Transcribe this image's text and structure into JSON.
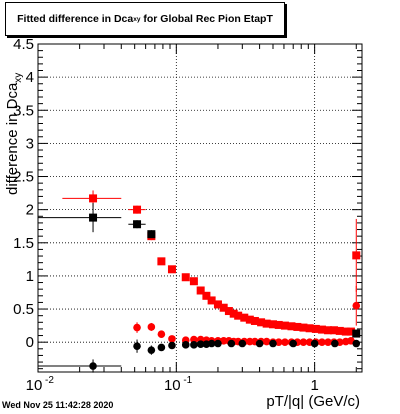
{
  "chart_data": {
    "type": "scatter",
    "title": "Fitted difference in Dca",
    "title_sub": "xy",
    "title_tail": "for Global Rec Pion EtapT",
    "xlabel": "pT/|q| (GeV/c)",
    "ylabel": "difference in Dca",
    "ylabel_sub": "xy",
    "x_scale": "log",
    "xlim": [
      0.01,
      2.2
    ],
    "ylim": [
      -0.45,
      4.5
    ],
    "grid": true,
    "x_ticks": [
      {
        "value": 0.01,
        "label": "10",
        "exp": "-2"
      },
      {
        "value": 0.1,
        "label": "10",
        "exp": "-1"
      },
      {
        "value": 1,
        "label": "1",
        "exp": ""
      }
    ],
    "y_ticks": [
      0,
      0.5,
      1,
      1.5,
      2,
      2.5,
      3,
      3.5,
      4,
      4.5
    ],
    "y_tick_labels": [
      "0",
      "0.5",
      "1",
      "1.5",
      "2",
      "2.5",
      "3",
      "3.5",
      "4",
      "4.5"
    ],
    "series": [
      {
        "marker": "square",
        "color": "#ff0000",
        "points": [
          {
            "x": 0.025,
            "y": 2.17,
            "xerr": [
              0.015,
              0.04
            ],
            "yerr": 0.12
          },
          {
            "x": 0.052,
            "y": 2.0,
            "xerr": [
              0.045,
              0.06
            ],
            "yerr": 0.06
          },
          {
            "x": 0.066,
            "y": 1.6,
            "xerr": [
              0.062,
              0.07
            ],
            "yerr": 0.06
          },
          {
            "x": 0.078,
            "y": 1.22
          },
          {
            "x": 0.093,
            "y": 1.1
          },
          {
            "x": 0.117,
            "y": 0.98
          },
          {
            "x": 0.134,
            "y": 0.92
          },
          {
            "x": 0.15,
            "y": 0.78
          },
          {
            "x": 0.165,
            "y": 0.7
          },
          {
            "x": 0.18,
            "y": 0.63
          },
          {
            "x": 0.2,
            "y": 0.57
          },
          {
            "x": 0.22,
            "y": 0.52
          },
          {
            "x": 0.24,
            "y": 0.47
          },
          {
            "x": 0.26,
            "y": 0.43
          },
          {
            "x": 0.28,
            "y": 0.4
          },
          {
            "x": 0.31,
            "y": 0.37
          },
          {
            "x": 0.34,
            "y": 0.34
          },
          {
            "x": 0.37,
            "y": 0.32
          },
          {
            "x": 0.41,
            "y": 0.3
          },
          {
            "x": 0.45,
            "y": 0.28
          },
          {
            "x": 0.5,
            "y": 0.27
          },
          {
            "x": 0.55,
            "y": 0.26
          },
          {
            "x": 0.61,
            "y": 0.25
          },
          {
            "x": 0.68,
            "y": 0.24
          },
          {
            "x": 0.75,
            "y": 0.23
          },
          {
            "x": 0.83,
            "y": 0.22
          },
          {
            "x": 0.92,
            "y": 0.21
          },
          {
            "x": 1.02,
            "y": 0.2
          },
          {
            "x": 1.13,
            "y": 0.19
          },
          {
            "x": 1.25,
            "y": 0.18
          },
          {
            "x": 1.38,
            "y": 0.18
          },
          {
            "x": 1.52,
            "y": 0.17
          },
          {
            "x": 1.68,
            "y": 0.16
          },
          {
            "x": 1.83,
            "y": 0.16
          },
          {
            "x": 2.0,
            "y": 1.31,
            "yerr": 0.55
          }
        ]
      },
      {
        "marker": "square",
        "color": "#000000",
        "points": [
          {
            "x": 0.025,
            "y": 1.88,
            "xerr": [
              0.01,
              0.04
            ],
            "yerr": 0.22
          },
          {
            "x": 0.052,
            "y": 1.78,
            "xerr": [
              0.045,
              0.06
            ],
            "yerr": 0.06
          },
          {
            "x": 0.066,
            "y": 1.63,
            "yerr": 0.06
          },
          {
            "x": 2.0,
            "y": 0.13,
            "yerr": 0.05
          }
        ]
      },
      {
        "marker": "circle",
        "color": "#ff0000",
        "points": [
          {
            "x": 0.052,
            "y": 0.22,
            "yerr": 0.08
          },
          {
            "x": 0.066,
            "y": 0.23,
            "yerr": 0.06
          },
          {
            "x": 0.078,
            "y": 0.12
          },
          {
            "x": 0.093,
            "y": 0.05
          },
          {
            "x": 0.117,
            "y": 0.03
          },
          {
            "x": 0.134,
            "y": 0.04
          },
          {
            "x": 0.15,
            "y": 0.04
          },
          {
            "x": 0.165,
            "y": 0.03
          },
          {
            "x": 0.18,
            "y": 0.02
          },
          {
            "x": 0.2,
            "y": 0.02
          },
          {
            "x": 0.22,
            "y": 0.02
          },
          {
            "x": 0.24,
            "y": 0.02
          },
          {
            "x": 0.26,
            "y": 0.01
          },
          {
            "x": 0.28,
            "y": 0.01
          },
          {
            "x": 0.31,
            "y": 0.01
          },
          {
            "x": 0.34,
            "y": 0.01
          },
          {
            "x": 0.37,
            "y": 0.01
          },
          {
            "x": 0.41,
            "y": 0.01
          },
          {
            "x": 0.45,
            "y": 0.01
          },
          {
            "x": 0.5,
            "y": 0.0
          },
          {
            "x": 0.55,
            "y": 0.0
          },
          {
            "x": 0.61,
            "y": 0.0
          },
          {
            "x": 0.68,
            "y": 0.0
          },
          {
            "x": 0.75,
            "y": 0.0
          },
          {
            "x": 0.83,
            "y": 0.0
          },
          {
            "x": 0.92,
            "y": 0.0
          },
          {
            "x": 1.02,
            "y": 0.0
          },
          {
            "x": 1.13,
            "y": 0.0
          },
          {
            "x": 1.25,
            "y": 0.0
          },
          {
            "x": 1.38,
            "y": 0.0
          },
          {
            "x": 1.52,
            "y": 0.0
          },
          {
            "x": 1.68,
            "y": 0.01
          },
          {
            "x": 1.83,
            "y": 0.02
          },
          {
            "x": 2.0,
            "y": 0.55,
            "yerr": 0.3
          }
        ]
      },
      {
        "marker": "circle",
        "color": "#000000",
        "points": [
          {
            "x": 0.025,
            "y": -0.36,
            "xerr": [
              0.01,
              0.04
            ],
            "yerr": 0.1
          },
          {
            "x": 0.052,
            "y": -0.06,
            "yerr": 0.1
          },
          {
            "x": 0.066,
            "y": -0.12,
            "yerr": 0.07
          },
          {
            "x": 0.078,
            "y": -0.08
          },
          {
            "x": 0.093,
            "y": -0.05
          },
          {
            "x": 0.117,
            "y": -0.04
          },
          {
            "x": 0.134,
            "y": -0.04
          },
          {
            "x": 0.15,
            "y": -0.03
          },
          {
            "x": 0.165,
            "y": -0.03
          },
          {
            "x": 0.18,
            "y": -0.02
          },
          {
            "x": 0.2,
            "y": -0.02
          },
          {
            "x": 0.25,
            "y": -0.02
          },
          {
            "x": 0.3,
            "y": -0.02
          },
          {
            "x": 0.4,
            "y": -0.02
          },
          {
            "x": 0.5,
            "y": -0.02
          },
          {
            "x": 0.7,
            "y": -0.02
          },
          {
            "x": 1.0,
            "y": -0.02
          },
          {
            "x": 1.4,
            "y": -0.02
          },
          {
            "x": 2.0,
            "y": -0.02,
            "yerr": 0.04
          }
        ]
      }
    ]
  },
  "footer": {
    "timestamp": "Wed Nov 25 11:42:28 2020"
  }
}
